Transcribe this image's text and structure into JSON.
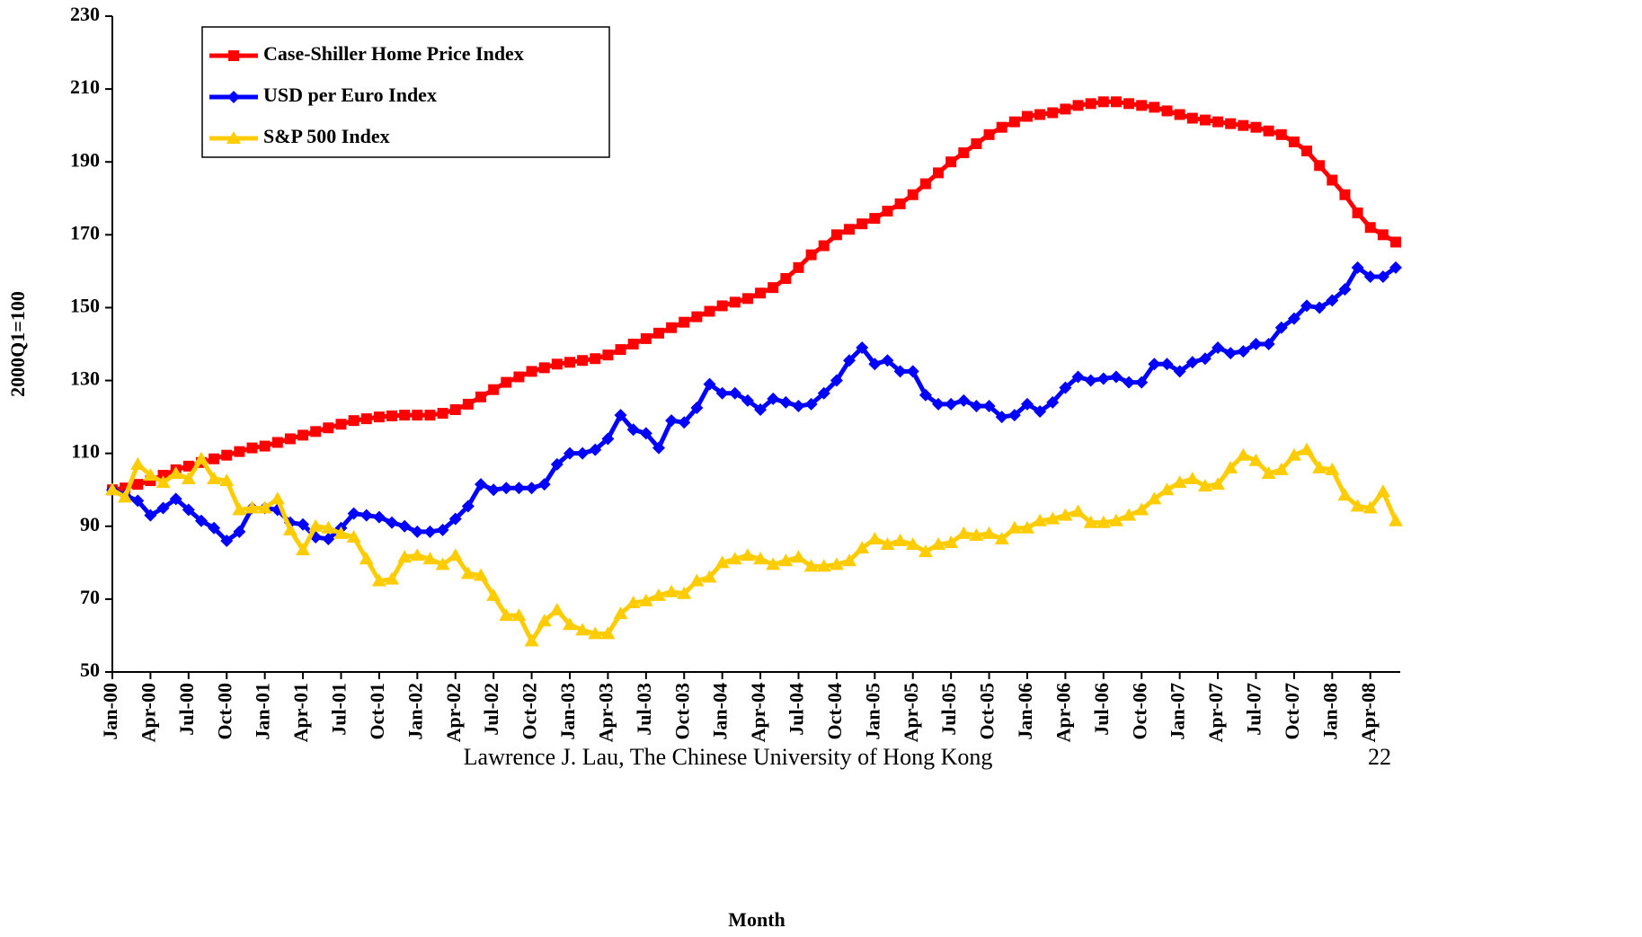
{
  "chart_data": {
    "type": "line",
    "ylabel": "2000Q1=100",
    "xlabel": "Month",
    "footer": "Lawrence J. Lau, The Chinese University of Hong Kong",
    "page_number": "22",
    "ylim": [
      50,
      230
    ],
    "yticks": [
      50,
      70,
      90,
      110,
      130,
      150,
      170,
      190,
      210,
      230
    ],
    "legend": "upper left",
    "categories": [
      "Jan-00",
      null,
      null,
      "Apr-00",
      null,
      null,
      "Jul-00",
      null,
      null,
      "Oct-00",
      null,
      null,
      "Jan-01",
      null,
      null,
      "Apr-01",
      null,
      null,
      "Jul-01",
      null,
      null,
      "Oct-01",
      null,
      null,
      "Jan-02",
      null,
      null,
      "Apr-02",
      null,
      null,
      "Jul-02",
      null,
      null,
      "Oct-02",
      null,
      null,
      "Jan-03",
      null,
      null,
      "Apr-03",
      null,
      null,
      "Jul-03",
      null,
      null,
      "Oct-03",
      null,
      null,
      "Jan-04",
      null,
      null,
      "Apr-04",
      null,
      null,
      "Jul-04",
      null,
      null,
      "Oct-04",
      null,
      null,
      "Jan-05",
      null,
      null,
      "Apr-05",
      null,
      null,
      "Jul-05",
      null,
      null,
      "Oct-05",
      null,
      null,
      "Jan-06",
      null,
      null,
      "Apr-06",
      null,
      null,
      "Jul-06",
      null,
      null,
      "Oct-06",
      null,
      null,
      "Jan-07",
      null,
      null,
      "Apr-07",
      null,
      null,
      "Jul-07",
      null,
      null,
      "Oct-07",
      null,
      null,
      "Jan-08",
      null,
      null,
      "Apr-08",
      null,
      null
    ],
    "series": [
      {
        "name": "Case-Shiller Home Price Index",
        "color": "#ff0000",
        "marker": "square",
        "values": [
          100,
          100.5,
          101.5,
          102.5,
          104,
          105.5,
          106.5,
          107.5,
          108.5,
          109.5,
          110.5,
          111.5,
          112,
          113,
          114,
          115,
          116,
          117,
          118,
          119,
          119.5,
          120,
          120.3,
          120.5,
          120.5,
          120.5,
          121,
          122,
          123.5,
          125.5,
          127.5,
          129.5,
          131,
          132.5,
          133.5,
          134.5,
          135,
          135.5,
          136,
          137,
          138.5,
          140,
          141.5,
          143,
          144.5,
          146,
          147.5,
          149,
          150.5,
          151.5,
          152.5,
          154,
          155.5,
          158,
          161,
          164.5,
          167,
          170,
          171.5,
          173,
          174.5,
          176.5,
          178.5,
          181,
          184,
          187,
          190,
          192.5,
          195,
          197.5,
          199.5,
          201,
          202.5,
          203,
          203.5,
          204.5,
          205.5,
          206,
          206.5,
          206.5,
          206,
          205.5,
          205,
          204,
          203,
          202,
          201.5,
          201,
          200.5,
          200,
          199.5,
          198.5,
          197.5,
          195.5,
          193,
          189,
          185,
          181,
          176,
          172,
          170,
          168
        ]
      },
      {
        "name": "USD per Euro Index",
        "color": "#0000ff",
        "marker": "diamond",
        "values": [
          100,
          98.5,
          97,
          93,
          95,
          97.5,
          94.5,
          91.5,
          89.5,
          86,
          88.5,
          95,
          95,
          94.5,
          91,
          90.5,
          87,
          86.5,
          89.5,
          93.5,
          93,
          92.5,
          91,
          90,
          88.5,
          88.5,
          89,
          92,
          95.5,
          101.5,
          100,
          100.5,
          100.5,
          100.5,
          101.5,
          107,
          110,
          110,
          111,
          114,
          120.5,
          116.5,
          115.5,
          111.5,
          119,
          118.5,
          122.5,
          129,
          126.5,
          126.5,
          124.5,
          122,
          125,
          124,
          123,
          123.5,
          126.5,
          130,
          135.5,
          139,
          134.5,
          135.5,
          132.5,
          132.5,
          126,
          123.5,
          123.5,
          124.5,
          123,
          123,
          120,
          120.5,
          123.5,
          121.5,
          124,
          128,
          131,
          130,
          130.5,
          131,
          129.5,
          129.5,
          134.5,
          134.5,
          132.5,
          135,
          136,
          139,
          137.5,
          138,
          140,
          140,
          144.5,
          147,
          150.5,
          150,
          152,
          155,
          161,
          158.5,
          158.5,
          161
        ]
      },
      {
        "name": "S&P 500 Index",
        "color": "#ffcc00",
        "marker": "triangle",
        "values": [
          100,
          98,
          107,
          104,
          102,
          104.5,
          103,
          108.5,
          103,
          102.5,
          94.5,
          95,
          95,
          97.5,
          89,
          83.5,
          90,
          89.5,
          88,
          87,
          81,
          75,
          75.5,
          81.5,
          82,
          81,
          79.5,
          82,
          77,
          76.5,
          71,
          65.5,
          65.5,
          58.5,
          64,
          67,
          63,
          61.5,
          60.5,
          60.5,
          66,
          69,
          69.5,
          71,
          72,
          71.5,
          75,
          76,
          80,
          81,
          82,
          81,
          79.5,
          80.5,
          81.5,
          79,
          79,
          79.5,
          80.5,
          84,
          86.5,
          85,
          86,
          85,
          83,
          85,
          85.5,
          88,
          87.5,
          88,
          86.5,
          89.5,
          89.5,
          91.5,
          92,
          93,
          94,
          91,
          91,
          91.5,
          93,
          94.5,
          97.5,
          100,
          102,
          103,
          101,
          101.5,
          106,
          109.5,
          108,
          104.5,
          105.5,
          109.5,
          111,
          106,
          105.5,
          98.5,
          95.5,
          95,
          99.5,
          91.5
        ]
      }
    ]
  }
}
